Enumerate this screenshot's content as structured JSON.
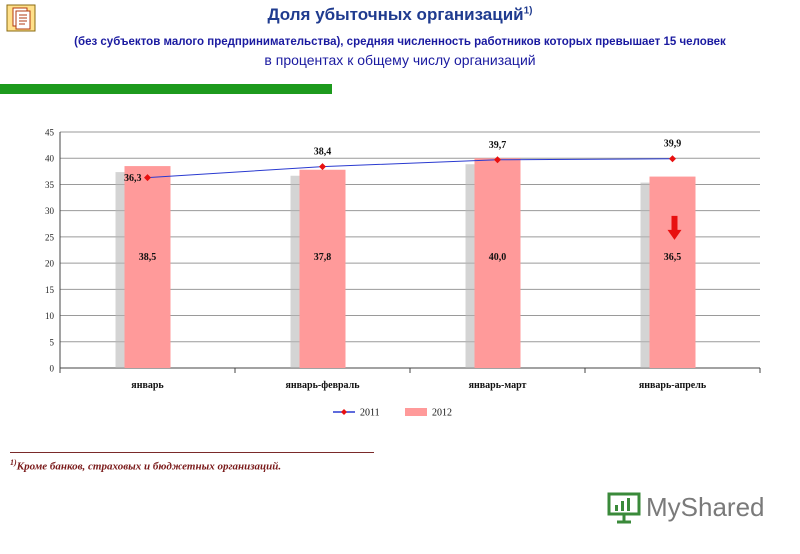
{
  "header": {
    "title": "Доля убыточных организаций",
    "title_sup": "1)",
    "subtitle": "(без субъектов малого предпринимательства), средняя численность работников которых превышает 15 человек",
    "subtitle2": "в процентах к общему числу организаций"
  },
  "footnote": {
    "sup": "1)",
    "text": "Кроме банков, страховых и бюджетных организаций."
  },
  "logo": {
    "text": "MyShared"
  },
  "icons": {
    "document": "document-icon",
    "arrow": "down-arrow-icon",
    "logo": "presentation-icon"
  },
  "colors": {
    "bar": "#ff9a9a",
    "line": "#2a3ad0",
    "marker": "#e81010",
    "arrow": "#e81010",
    "title": "#1f3b8f",
    "green_bar": "#1d9a1d"
  },
  "chart_data": {
    "type": "bar",
    "categories": [
      "январь",
      "январь-февраль",
      "январь-март",
      "январь-апрель"
    ],
    "series": [
      {
        "name": "2012",
        "type": "bar",
        "values": [
          38.5,
          37.8,
          40.0,
          36.5
        ],
        "labels": [
          "38,5",
          "37,8",
          "40,0",
          "36,5"
        ]
      },
      {
        "name": "2011",
        "type": "line",
        "values": [
          36.3,
          38.4,
          39.7,
          39.9
        ],
        "labels": [
          "36,3",
          "38,4",
          "39,7",
          "39,9"
        ]
      }
    ],
    "ylim": [
      0,
      45
    ],
    "yticks": [
      "0",
      "5",
      "10",
      "15",
      "20",
      "25",
      "30",
      "35",
      "40",
      "45"
    ],
    "grid": true,
    "legend": "bottom"
  }
}
